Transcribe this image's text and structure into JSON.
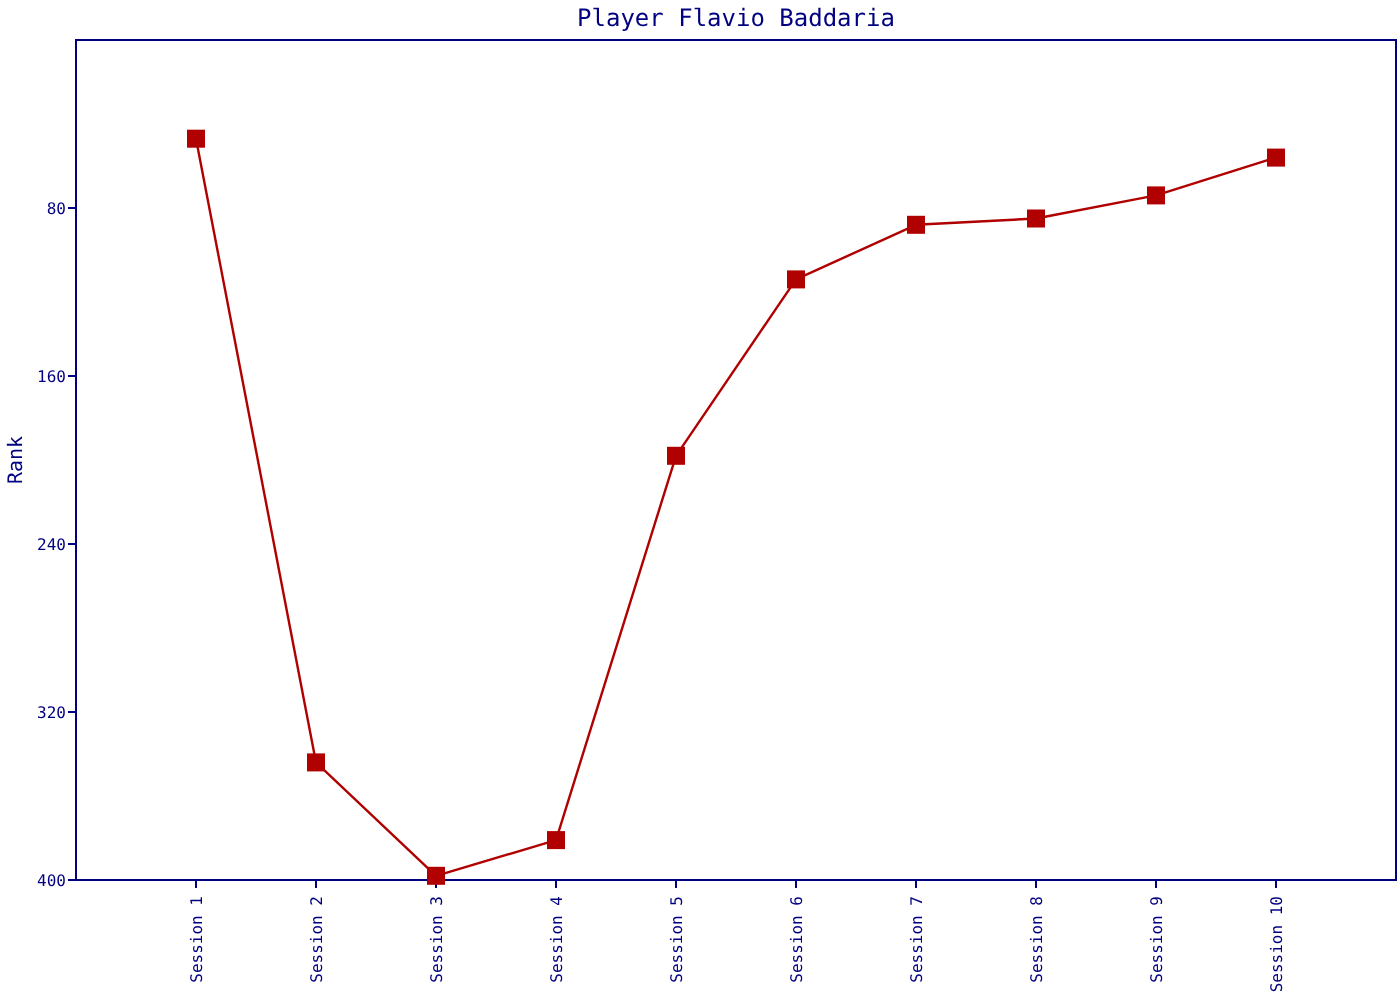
{
  "chart_data": {
    "type": "line",
    "title": "Player Flavio Baddaria",
    "ylabel": "Rank",
    "categories": [
      "Session 1",
      "Session 2",
      "Session 3",
      "Session 4",
      "Session 5",
      "Session 6",
      "Session 7",
      "Session 8",
      "Session 9",
      "Session 10"
    ],
    "series": [
      {
        "color": "#b00000",
        "values": [
          47,
          344,
          398,
          381,
          198,
          114,
          88,
          85,
          74,
          56
        ]
      }
    ],
    "ylim": [
      400,
      0
    ],
    "yticks": [
      80,
      160,
      240,
      320,
      400
    ],
    "marker": "square",
    "grid": false
  }
}
